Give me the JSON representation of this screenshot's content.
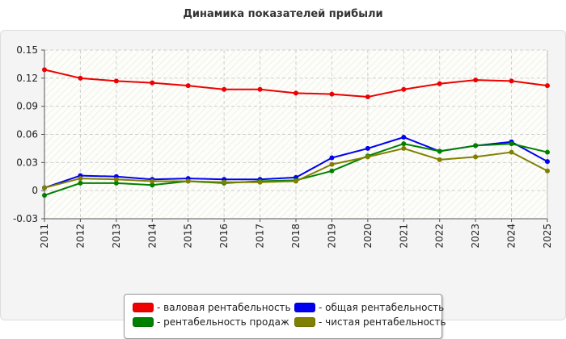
{
  "chart_data": {
    "type": "line",
    "title": "Динамика показателей прибыли",
    "xlabel": "",
    "ylabel": "",
    "x": [
      "2011",
      "2012",
      "2013",
      "2014",
      "2015",
      "2016",
      "2017",
      "2018",
      "2019",
      "2020",
      "2021",
      "2022",
      "2023",
      "2024",
      "2025"
    ],
    "ylim": [
      -0.03,
      0.15
    ],
    "yticks": [
      "-0.03",
      "0",
      "0.03",
      "0.06",
      "0.09",
      "0.12",
      "0.15"
    ],
    "grid": true,
    "legend_position": "bottom",
    "series": [
      {
        "name": "- валовая рентабельность",
        "color": "#ee0000",
        "values": [
          0.129,
          0.12,
          0.117,
          0.115,
          0.112,
          0.108,
          0.108,
          0.104,
          0.103,
          0.1,
          0.108,
          0.114,
          0.118,
          0.117,
          0.112
        ]
      },
      {
        "name": "- общая рентабельность",
        "color": "#0000ee",
        "values": [
          0.003,
          0.016,
          0.015,
          0.012,
          0.013,
          0.012,
          0.012,
          0.014,
          0.035,
          0.045,
          0.057,
          0.042,
          0.048,
          0.052,
          0.031
        ]
      },
      {
        "name": "- рентабельность продаж",
        "color": "#008000",
        "values": [
          -0.005,
          0.008,
          0.008,
          0.006,
          0.01,
          0.008,
          0.01,
          0.011,
          0.021,
          0.037,
          0.05,
          0.042,
          0.048,
          0.05,
          0.041
        ]
      },
      {
        "name": "- чистая рентабельность",
        "color": "#808000",
        "values": [
          0.003,
          0.013,
          0.012,
          0.01,
          0.01,
          0.009,
          0.009,
          0.01,
          0.028,
          0.036,
          0.045,
          0.033,
          0.036,
          0.041,
          0.021
        ]
      }
    ]
  }
}
